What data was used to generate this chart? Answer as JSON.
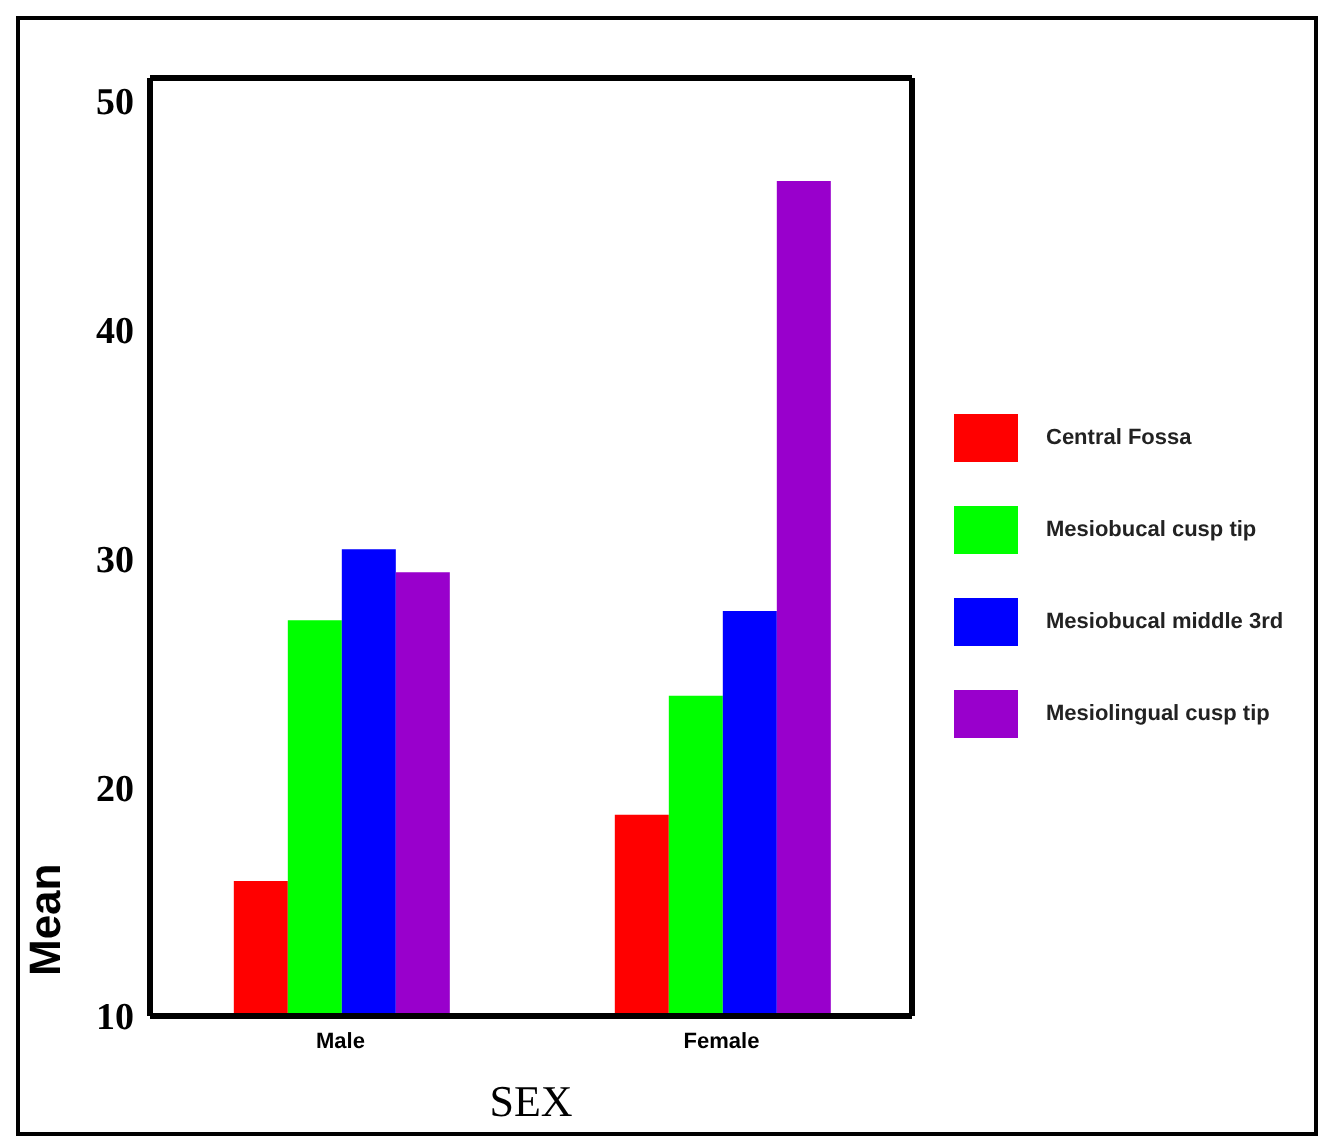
{
  "chart_data": {
    "type": "bar",
    "xlabel": "SEX",
    "ylabel": "Mean",
    "categories": [
      "Male",
      "Female"
    ],
    "series": [
      {
        "name": "Central Fossa",
        "color": "#ff0000",
        "values": [
          15.9,
          18.8
        ]
      },
      {
        "name": "Mesiobucal cusp tip",
        "color": "#00ff00",
        "values": [
          27.3,
          24.0
        ]
      },
      {
        "name": "Mesiobucal middle 3rd",
        "color": "#0000ff",
        "values": [
          30.4,
          27.7
        ]
      },
      {
        "name": "Mesiolingual cusp tip",
        "color": "#9900cc",
        "values": [
          29.4,
          46.5
        ]
      }
    ],
    "ylim": [
      10,
      51
    ],
    "yticks": [
      10,
      20,
      30,
      40,
      50
    ],
    "legend": "right"
  }
}
